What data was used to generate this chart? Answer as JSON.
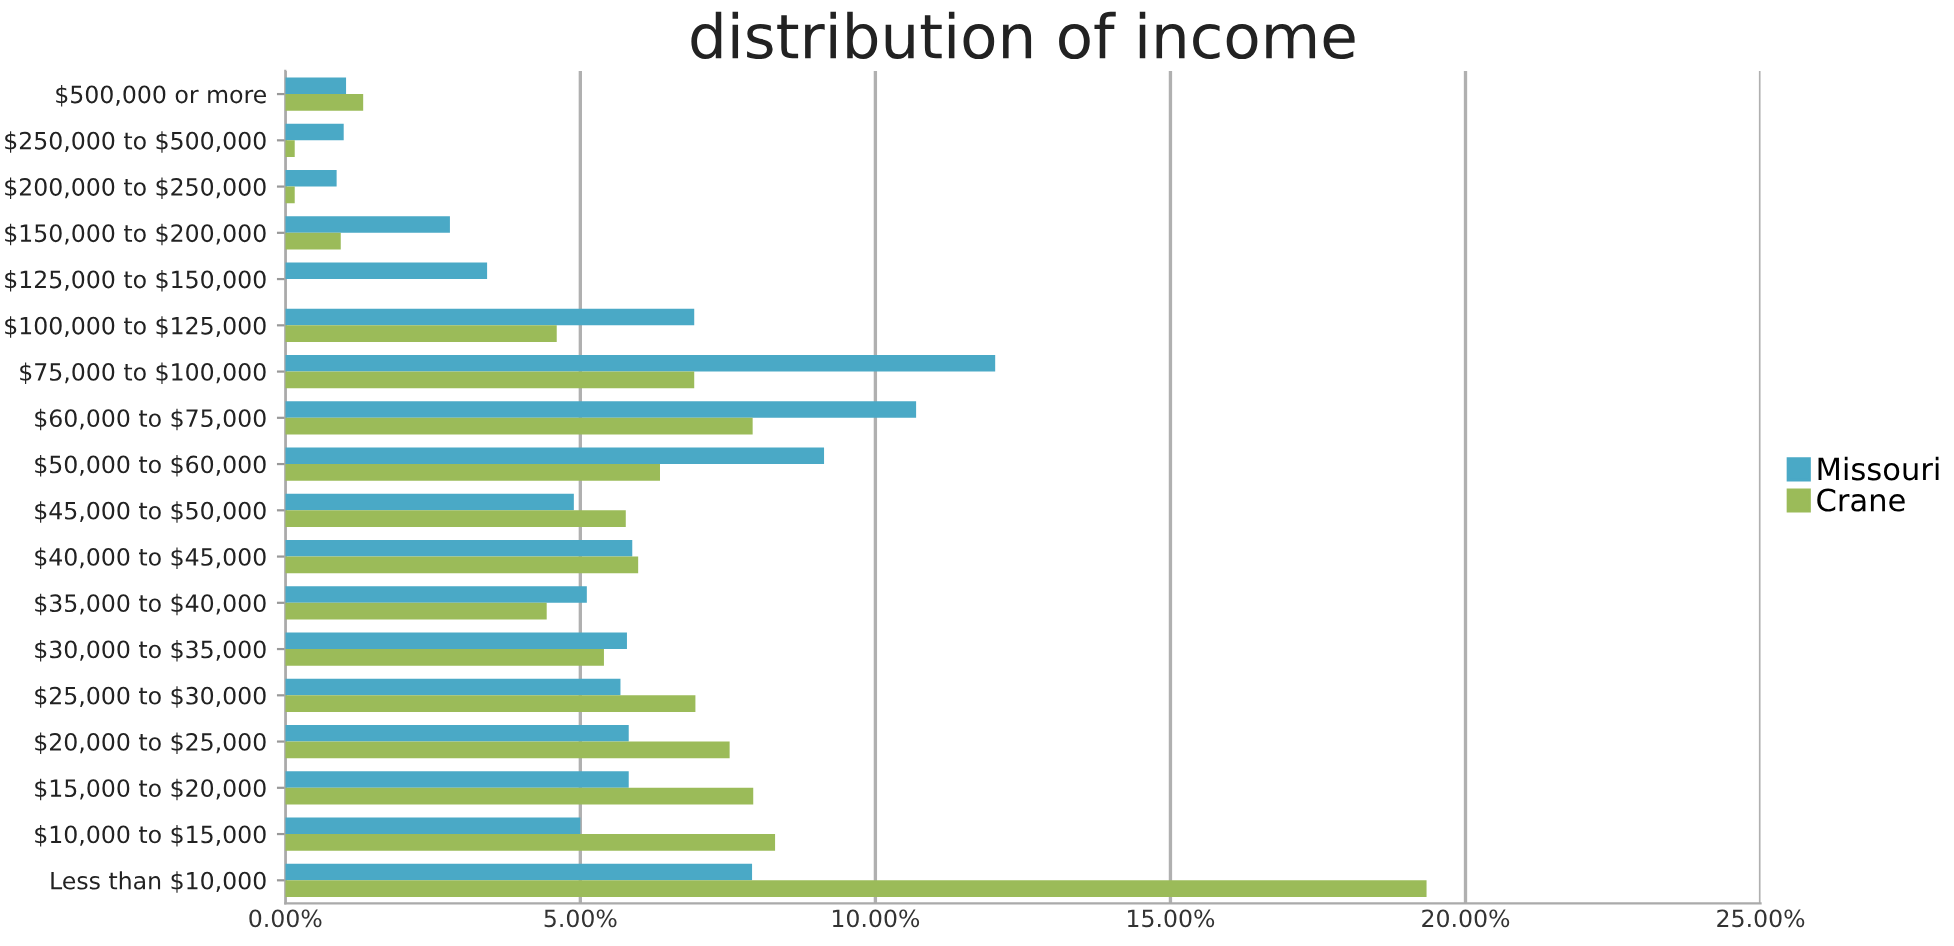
{
  "chart_data": {
    "type": "bar",
    "orientation": "horizontal",
    "title": "distribution of income",
    "categories": [
      "$500,000 or more",
      "$250,000 to $500,000",
      "$200,000 to $250,000",
      "$150,000 to $200,000",
      "$125,000 to $150,000",
      "$100,000 to $125,000",
      "$75,000 to $100,000",
      "$60,000 to $75,000",
      "$50,000 to $60,000",
      "$45,000 to $50,000",
      "$40,000 to $45,000",
      "$35,000 to $40,000",
      "$30,000 to $35,000",
      "$25,000 to $30,000",
      "$20,000 to $25,000",
      "$15,000 to $20,000",
      "$10,000 to $15,000",
      "Less than $10,000"
    ],
    "series": [
      {
        "name": "Missouri",
        "color": "#4aa9c6",
        "values": [
          1.03,
          0.99,
          0.87,
          2.79,
          3.42,
          6.93,
          12.03,
          10.69,
          9.13,
          4.89,
          5.88,
          5.11,
          5.79,
          5.68,
          5.82,
          5.82,
          5.0,
          7.91
        ]
      },
      {
        "name": "Crane",
        "color": "#9bbb59",
        "values": [
          1.32,
          0.16,
          0.16,
          0.94,
          0,
          4.6,
          6.93,
          7.92,
          6.35,
          5.77,
          5.98,
          4.43,
          5.4,
          6.95,
          7.53,
          7.93,
          8.3,
          19.34
        ]
      }
    ],
    "xlim": [
      0,
      25
    ],
    "xticks": [
      {
        "value": 0,
        "label": "0.00%"
      },
      {
        "value": 5,
        "label": "5.00%"
      },
      {
        "value": 10,
        "label": "10.00%"
      },
      {
        "value": 15,
        "label": "15.00%"
      },
      {
        "value": 20,
        "label": "20.00%"
      },
      {
        "value": 25,
        "label": "25.00%"
      }
    ],
    "grid": "x",
    "legend": "right"
  }
}
